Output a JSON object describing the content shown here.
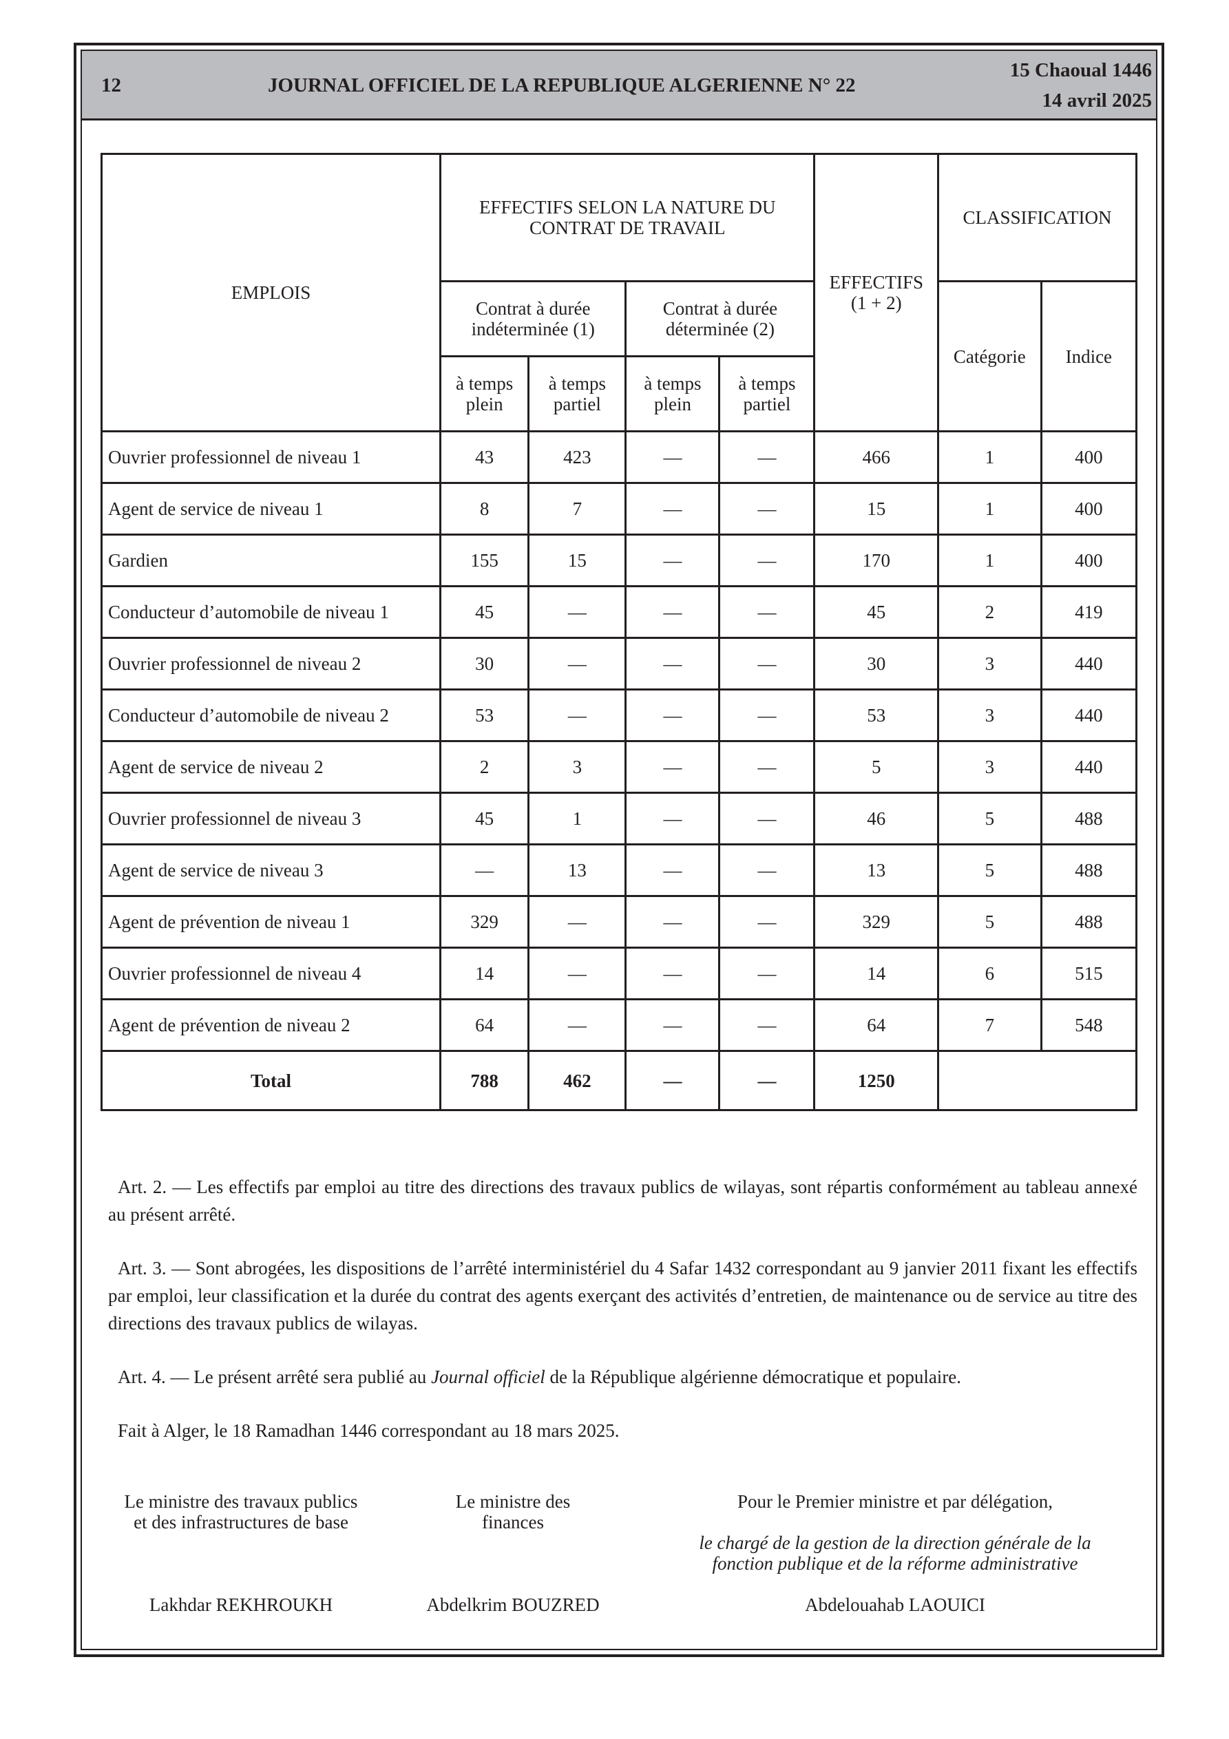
{
  "header": {
    "page_number": "12",
    "journal_title": "JOURNAL OFFICIEL DE LA REPUBLIQUE ALGERIENNE N° 22",
    "date_hijri": "15 Chaoual 1446",
    "date_gregorian": "14 avril 2025"
  },
  "table": {
    "col_emplois": "EMPLOIS",
    "col_nature": "EFFECTIFS SELON LA NATURE DU CONTRAT DE TRAVAIL",
    "col_effectifs": "EFFECTIFS (1 + 2)",
    "col_classification": "CLASSIFICATION",
    "col_cdi": "Contrat à durée indéterminée (1)",
    "col_cdd": "Contrat à durée déterminée (2)",
    "col_categorie": "Catégorie",
    "col_indice": "Indice",
    "col_plein": "à temps plein",
    "col_partiel": "à temps partiel",
    "rows": [
      [
        "Ouvrier professionnel de niveau 1",
        "43",
        "423",
        "—",
        "—",
        "466",
        "1",
        "400"
      ],
      [
        "Agent de service de niveau 1",
        "8",
        "7",
        "—",
        "—",
        "15",
        "1",
        "400"
      ],
      [
        "Gardien",
        "155",
        "15",
        "—",
        "—",
        "170",
        "1",
        "400"
      ],
      [
        "Conducteur d’automobile de niveau 1",
        "45",
        "—",
        "—",
        "—",
        "45",
        "2",
        "419"
      ],
      [
        "Ouvrier professionnel de niveau 2",
        "30",
        "—",
        "—",
        "—",
        "30",
        "3",
        "440"
      ],
      [
        "Conducteur d’automobile de niveau 2",
        "53",
        "—",
        "—",
        "—",
        "53",
        "3",
        "440"
      ],
      [
        "Agent de service de niveau 2",
        "2",
        "3",
        "—",
        "—",
        "5",
        "3",
        "440"
      ],
      [
        "Ouvrier professionnel de niveau 3",
        "45",
        "1",
        "—",
        "—",
        "46",
        "5",
        "488"
      ],
      [
        "Agent de service de niveau 3",
        "—",
        "13",
        "—",
        "—",
        "13",
        "5",
        "488"
      ],
      [
        "Agent de prévention de niveau 1",
        "329",
        "—",
        "—",
        "—",
        "329",
        "5",
        "488"
      ],
      [
        "Ouvrier professionnel de niveau 4",
        "14",
        "—",
        "—",
        "—",
        "14",
        "6",
        "515"
      ],
      [
        "Agent de prévention de niveau 2",
        "64",
        "—",
        "—",
        "—",
        "64",
        "7",
        "548"
      ]
    ],
    "total": [
      "Total",
      "788",
      "462",
      "—",
      "—",
      "1250"
    ]
  },
  "articles": {
    "art2": "Art. 2. — Les effectifs par emploi au titre des directions des travaux publics de wilayas, sont répartis conformément au tableau annexé au présent arrêté.",
    "art3": "Art. 3. — Sont abrogées, les dispositions de l’arrêté interministériel du 4 Safar 1432 correspondant au 9 janvier 2011 fixant les effectifs par emploi, leur classification et la durée du contrat des agents exerçant des activités d’entretien, de maintenance ou de service au titre des directions des travaux publics de wilayas.",
    "art4_before": "Art. 4. — Le présent arrêté sera publié au ",
    "art4_italic": "Journal officiel",
    "art4_after": " de la République algérienne démocratique et populaire.",
    "fait": "Fait à Alger, le 18 Ramadhan 1446 correspondant au 18 mars 2025."
  },
  "signatures": {
    "s1_title": "Le ministre des travaux publics et des infrastructures de base",
    "s1_name": "Lakhdar REKHROUKH",
    "s2_title": "Le ministre des finances",
    "s2_name": "Abdelkrim BOUZRED",
    "s3_title": "Pour le Premier ministre et par délégation,",
    "s3_subtitle": "le chargé de la gestion de la direction générale de la fonction publique et de la réforme administrative",
    "s3_name": "Abdelouahab LAOUICI"
  }
}
